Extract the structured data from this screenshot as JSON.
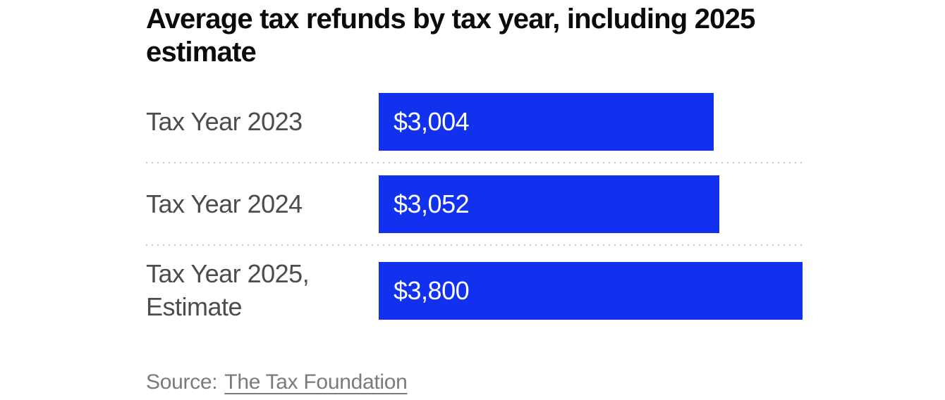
{
  "title": "Average tax refunds by tax year, including 2025 estimate",
  "source": {
    "prefix": "Source:",
    "link_label": "The Tax Foundation"
  },
  "colors": {
    "bar": "#1231ee",
    "title_text": "#0b0b0b",
    "label_text": "#4c4c4c",
    "bar_text": "#ffffff",
    "source_text": "#7b7b7b",
    "divider": "#cbcbcb"
  },
  "chart_data": {
    "type": "bar",
    "orientation": "horizontal",
    "title": "Average tax refunds by tax year, including 2025 estimate",
    "categories": [
      "Tax Year 2023",
      "Tax Year 2024",
      "Tax Year 2025, Estimate"
    ],
    "values": [
      3004,
      3052,
      3800
    ],
    "value_labels": [
      "$3,004",
      "$3,052",
      "$3,800"
    ],
    "xlabel": "",
    "ylabel": "",
    "xlim": [
      0,
      3800
    ],
    "grid": false,
    "legend": false,
    "bar_color": "#1231ee",
    "value_label_position": "inside-start",
    "row_dividers": "dotted"
  }
}
